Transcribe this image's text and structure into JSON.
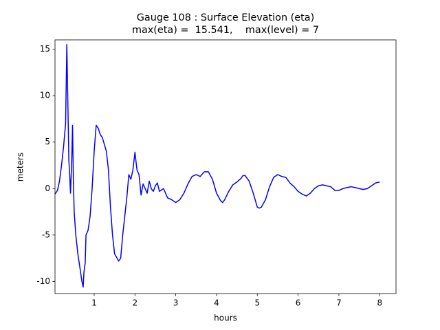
{
  "chart_data": {
    "type": "line",
    "title": "Gauge 108 : Surface Elevation (eta)",
    "subtitle": "max(eta) =  15.541,    max(level) = 7",
    "x_label": "hours",
    "y_label": "meters",
    "xlim": [
      0.04,
      8.4
    ],
    "ylim": [
      -11.3,
      16.0
    ],
    "xticks": [
      1,
      2,
      3,
      4,
      5,
      6,
      7,
      8
    ],
    "yticks": [
      -10,
      -5,
      0,
      5,
      10,
      15
    ],
    "grid": false,
    "x": [
      0.04,
      0.1,
      0.15,
      0.2,
      0.25,
      0.3,
      0.33,
      0.36,
      0.38,
      0.4,
      0.42,
      0.45,
      0.47,
      0.49,
      0.51,
      0.55,
      0.6,
      0.65,
      0.7,
      0.73,
      0.75,
      0.78,
      0.8,
      0.85,
      0.9,
      0.95,
      1.0,
      1.05,
      1.1,
      1.15,
      1.2,
      1.3,
      1.35,
      1.4,
      1.45,
      1.5,
      1.6,
      1.65,
      1.7,
      1.75,
      1.8,
      1.85,
      1.9,
      1.95,
      2.0,
      2.05,
      2.1,
      2.15,
      2.2,
      2.25,
      2.3,
      2.35,
      2.4,
      2.45,
      2.5,
      2.55,
      2.6,
      2.7,
      2.8,
      2.9,
      3.0,
      3.1,
      3.2,
      3.3,
      3.4,
      3.5,
      3.6,
      3.7,
      3.8,
      3.9,
      4.0,
      4.1,
      4.15,
      4.2,
      4.3,
      4.4,
      4.5,
      4.6,
      4.65,
      4.7,
      4.8,
      4.9,
      5.0,
      5.05,
      5.1,
      5.2,
      5.3,
      5.4,
      5.5,
      5.6,
      5.7,
      5.8,
      5.9,
      6.0,
      6.1,
      6.2,
      6.3,
      6.4,
      6.5,
      6.6,
      6.7,
      6.8,
      6.9,
      7.0,
      7.1,
      7.2,
      7.3,
      7.4,
      7.5,
      7.6,
      7.7,
      7.8,
      7.9,
      8.0
    ],
    "series": [
      {
        "name": "eta",
        "color": "#0000ff",
        "values": [
          -0.6,
          -0.2,
          0.8,
          2.5,
          4.5,
          7,
          15.5,
          8,
          3,
          1.5,
          -0.5,
          3,
          6.8,
          1,
          -2.5,
          -5,
          -7,
          -8.5,
          -10,
          -10.6,
          -9,
          -8,
          -5,
          -4.5,
          -3,
          0,
          4,
          6.8,
          6.5,
          5.8,
          5.5,
          4,
          2,
          -2,
          -5,
          -7,
          -7.8,
          -7.5,
          -5,
          -3,
          -1,
          1.5,
          1,
          2,
          3.9,
          2,
          1.5,
          -0.7,
          0.5,
          0,
          -0.5,
          0.8,
          0,
          -0.3,
          0.3,
          0.6,
          -0.3,
          0,
          -1,
          -1.2,
          -1.5,
          -1.2,
          -0.5,
          0.5,
          1.3,
          1.5,
          1.3,
          1.8,
          1.8,
          1,
          -0.5,
          -1.3,
          -1.5,
          -1.2,
          -0.3,
          0.4,
          0.7,
          1.1,
          1.4,
          1.4,
          0.8,
          -0.5,
          -2,
          -2.1,
          -2,
          -1.2,
          0.2,
          1.2,
          1.5,
          1.3,
          1.2,
          0.6,
          0.2,
          -0.3,
          -0.6,
          -0.8,
          -0.5,
          0,
          0.3,
          0.4,
          0.3,
          0.2,
          -0.2,
          -0.2,
          0,
          0.1,
          0.2,
          0.1,
          0,
          -0.1,
          0,
          0.3,
          0.6,
          0.7
        ]
      }
    ]
  }
}
